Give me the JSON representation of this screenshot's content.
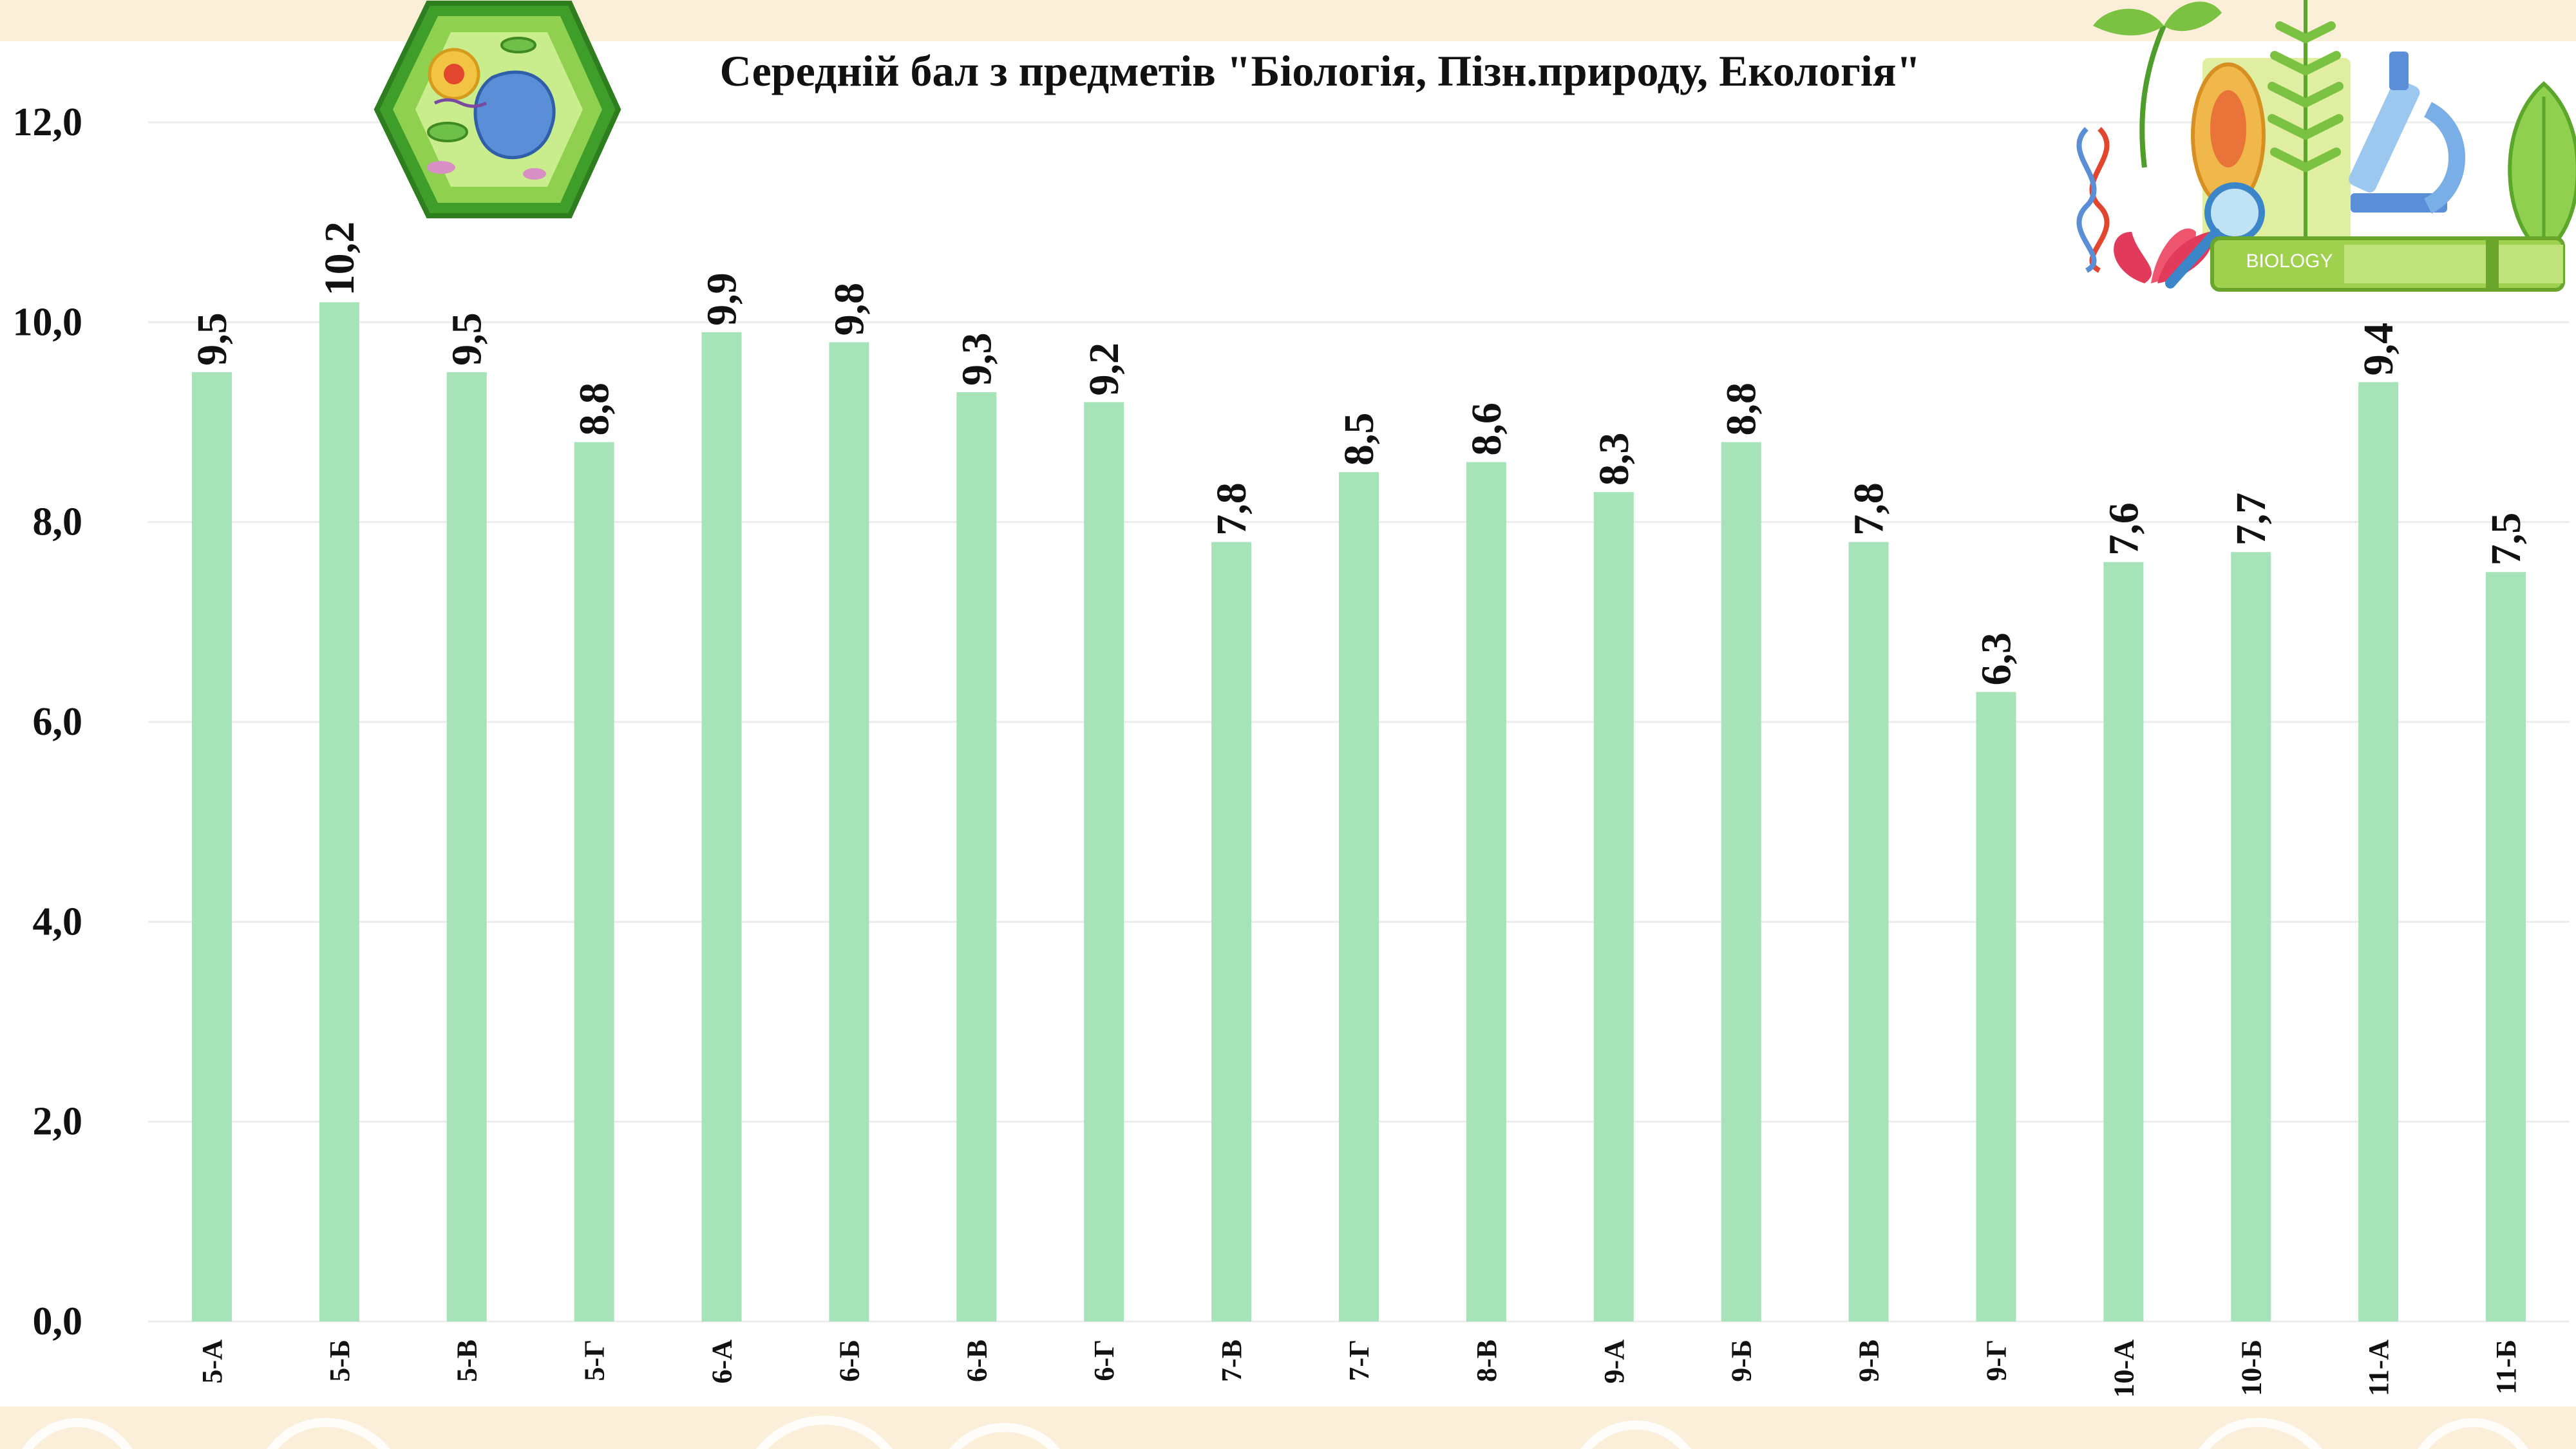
{
  "chart_data": {
    "type": "bar",
    "title": "Середній бал з предметів \"Біологія, Пізн.природу, Екологія\"",
    "categories": [
      "5-А",
      "5-Б",
      "5-В",
      "5-Г",
      "6-А",
      "6-Б",
      "6-В",
      "6-Г",
      "7-В",
      "7-Г",
      "8-В",
      "9-А",
      "9-Б",
      "9-В",
      "9-Г",
      "10-А",
      "10-Б",
      "11-А",
      "11-Б"
    ],
    "values": [
      9.5,
      10.2,
      9.5,
      8.8,
      9.9,
      9.8,
      9.3,
      9.2,
      7.8,
      8.5,
      8.6,
      8.3,
      8.8,
      7.8,
      6.3,
      7.6,
      7.7,
      9.4,
      7.5
    ],
    "value_labels": [
      "9,5",
      "10,2",
      "9,5",
      "8,8",
      "9,9",
      "9,8",
      "9,3",
      "9,2",
      "7,8",
      "8,5",
      "8,6",
      "8,3",
      "8,8",
      "7,8",
      "6,3",
      "7,6",
      "7,7",
      "9,4",
      "7,5"
    ],
    "y_ticks": [
      "0,0",
      "2,0",
      "4,0",
      "6,0",
      "8,0",
      "10,0",
      "12,0"
    ],
    "ylim": [
      0,
      12
    ],
    "grid": true,
    "legend": "none",
    "bar_color": "#a6e3b8"
  },
  "decorations": {
    "plant_cell": "plant-cell-illustration",
    "biology_collage": "biology-collage-illustration",
    "collage_book_label": "BIOLOGY"
  }
}
